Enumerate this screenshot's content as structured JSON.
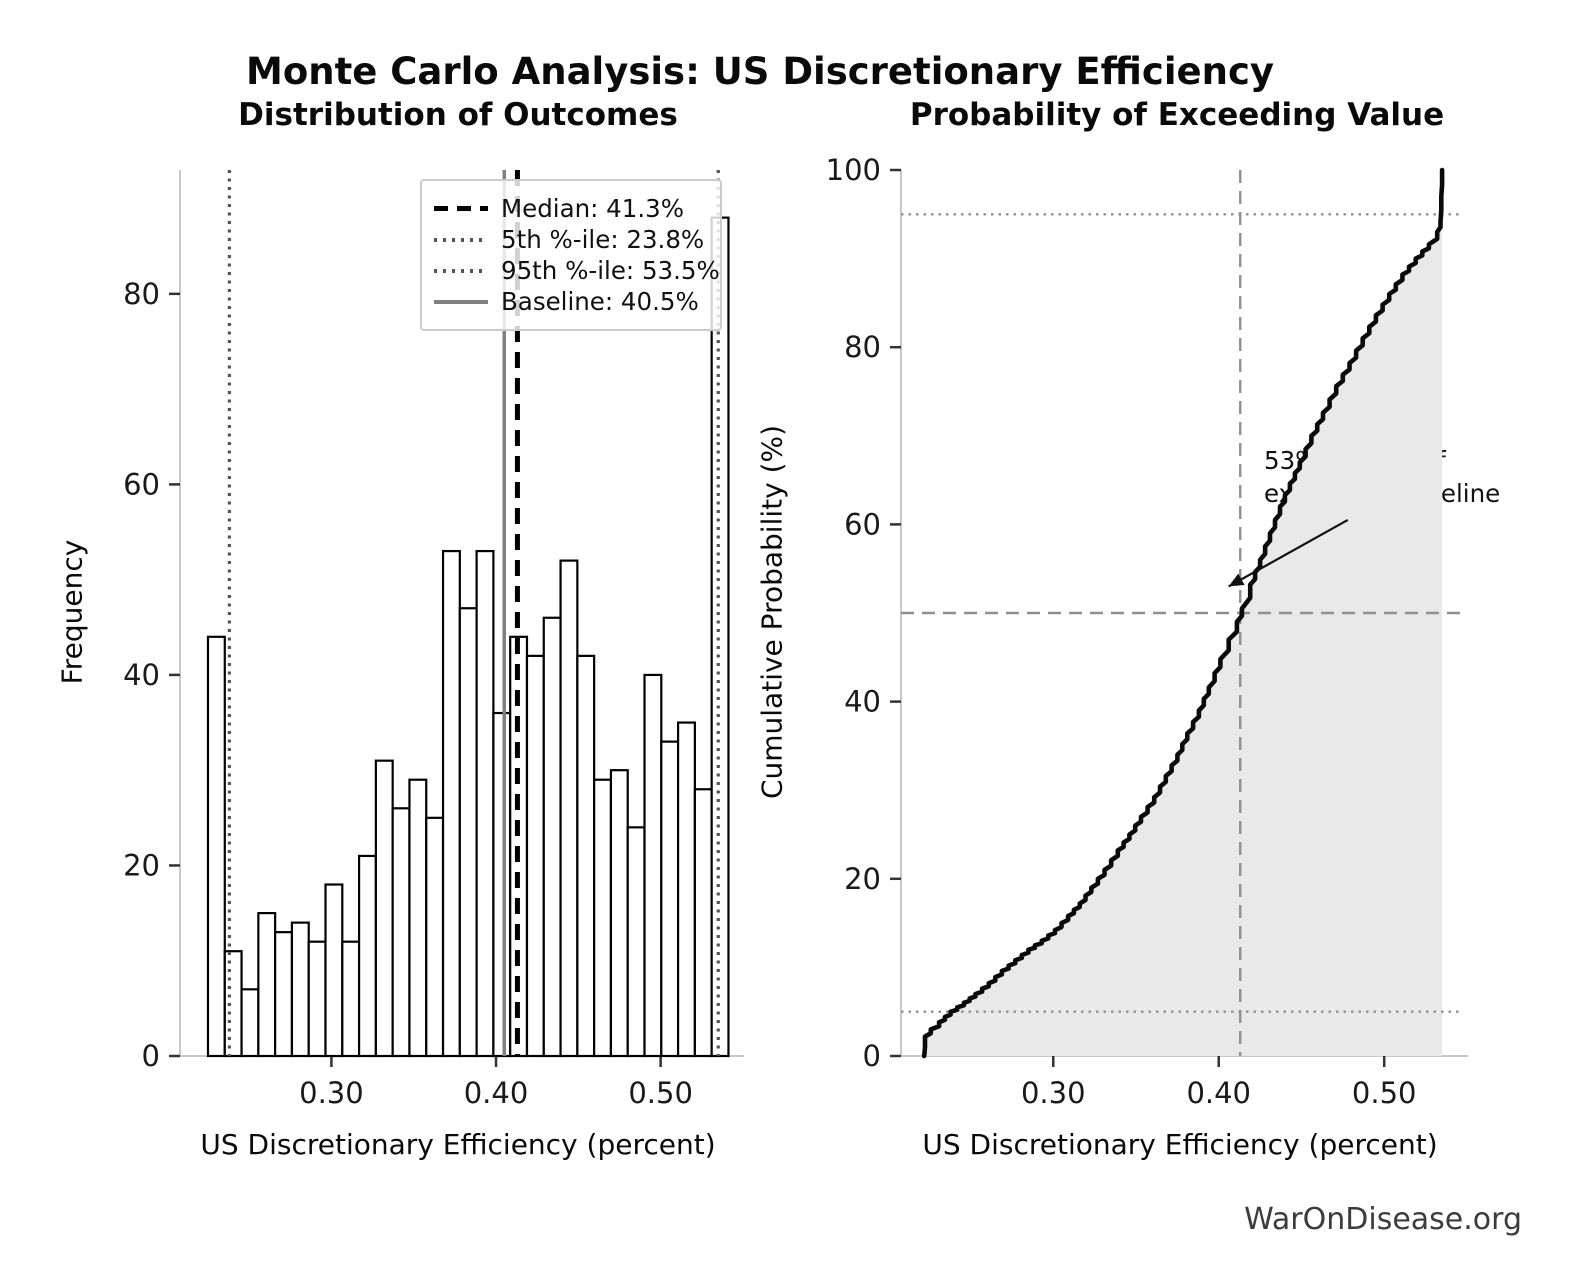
{
  "figure": {
    "title": "Monte Carlo Analysis: US Discretionary Efficiency",
    "footer": "WarOnDisease.org"
  },
  "colors": {
    "bar_fill": "#ffffff",
    "bar_edge": "#000000",
    "median_line": "#000000",
    "percentile_line": "#555555",
    "baseline_line": "#808080",
    "curve": "#0a0a0a",
    "cdf_fill": "#e9e9e9",
    "ref_line": "#909090",
    "spine": "#c8c8c8",
    "tick": "#333333",
    "tick_label": "#1a1a1a"
  },
  "chart_data": [
    {
      "type": "bar",
      "subtype": "histogram",
      "title": "Distribution of Outcomes",
      "xlabel": "US Discretionary Efficiency (percent)",
      "ylabel": "Frequency",
      "x_tick_labels": [
        "0.30",
        "0.40",
        "0.50"
      ],
      "x_tick_values": [
        0.3,
        0.4,
        0.5
      ],
      "y_tick_values": [
        0,
        20,
        40,
        60,
        80
      ],
      "xlim": [
        0.208,
        0.547
      ],
      "ylim": [
        0,
        93
      ],
      "grid": false,
      "bin_start": 0.225,
      "bin_width": 0.0102,
      "counts": [
        44,
        11,
        7,
        15,
        13,
        14,
        12,
        18,
        12,
        21,
        31,
        26,
        29,
        25,
        53,
        47,
        53,
        36,
        44,
        42,
        46,
        52,
        42,
        29,
        30,
        24,
        40,
        33,
        35,
        28,
        88
      ],
      "legend_position": "upper right",
      "legend": [
        {
          "label": "Median: 41.3%",
          "value": 0.413,
          "style": "dashed-black"
        },
        {
          "label": "5th %-ile: 23.8%",
          "value": 0.238,
          "style": "dotted-gray"
        },
        {
          "label": "95th %-ile: 53.5%",
          "value": 0.535,
          "style": "dotted-gray"
        },
        {
          "label": "Baseline: 40.5%",
          "value": 0.405,
          "style": "solid-gray"
        }
      ]
    },
    {
      "type": "line",
      "subtype": "empirical-cdf",
      "title": "Probability of Exceeding Value",
      "xlabel": "US Discretionary Efficiency (percent)",
      "ylabel": "Cumulative Probability (%)",
      "x_tick_labels": [
        "0.30",
        "0.40",
        "0.50"
      ],
      "x_tick_values": [
        0.3,
        0.4,
        0.5
      ],
      "y_tick_values": [
        0,
        20,
        40,
        60,
        80,
        100
      ],
      "xlim": [
        0.208,
        0.547
      ],
      "ylim": [
        0,
        100
      ],
      "grid": false,
      "fill_under_curve": true,
      "curve": [
        [
          0.222,
          0
        ],
        [
          0.2225,
          2.2
        ],
        [
          0.226,
          3
        ],
        [
          0.231,
          3.8
        ],
        [
          0.238,
          5
        ],
        [
          0.246,
          6
        ],
        [
          0.253,
          7
        ],
        [
          0.261,
          8.2
        ],
        [
          0.269,
          9.6
        ],
        [
          0.277,
          10.8
        ],
        [
          0.285,
          12
        ],
        [
          0.293,
          13
        ],
        [
          0.301,
          14.2
        ],
        [
          0.309,
          15.8
        ],
        [
          0.316,
          17.2
        ],
        [
          0.323,
          19
        ],
        [
          0.331,
          21
        ],
        [
          0.339,
          23.2
        ],
        [
          0.346,
          25
        ],
        [
          0.353,
          27
        ],
        [
          0.361,
          29.2
        ],
        [
          0.368,
          31.6
        ],
        [
          0.375,
          34
        ],
        [
          0.381,
          36.4
        ],
        [
          0.388,
          39
        ],
        [
          0.394,
          41.6
        ],
        [
          0.401,
          44.8
        ],
        [
          0.406,
          47
        ],
        [
          0.411,
          49
        ],
        [
          0.414,
          50.5
        ],
        [
          0.419,
          53.2
        ],
        [
          0.425,
          56
        ],
        [
          0.431,
          59
        ],
        [
          0.437,
          62
        ],
        [
          0.443,
          64.6
        ],
        [
          0.449,
          67
        ],
        [
          0.456,
          70
        ],
        [
          0.463,
          72.6
        ],
        [
          0.471,
          75.6
        ],
        [
          0.479,
          78.2
        ],
        [
          0.487,
          81
        ],
        [
          0.495,
          83.6
        ],
        [
          0.503,
          86
        ],
        [
          0.511,
          88.2
        ],
        [
          0.519,
          90
        ],
        [
          0.527,
          91.6
        ],
        [
          0.532,
          93
        ],
        [
          0.534,
          94.2
        ],
        [
          0.5345,
          97
        ],
        [
          0.535,
          100
        ]
      ],
      "h_dotted_refs": [
        5,
        95
      ],
      "h_dashed_refs": [
        50
      ],
      "v_dashed_refs": [
        0.413
      ],
      "annotation": {
        "text": "53% chance of\nexceeding baseline",
        "arrow_tip": [
          0.406,
          53
        ],
        "arrow_tail": [
          0.478,
          60.5
        ]
      }
    }
  ]
}
